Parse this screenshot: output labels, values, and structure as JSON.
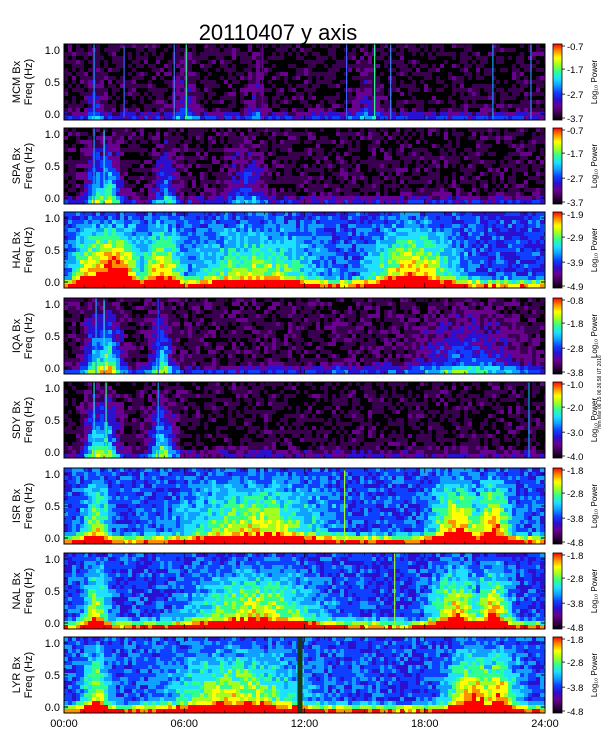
{
  "figure": {
    "title": "20110407 y axis",
    "side_note": "mm Mar 06 15 06:36:58 UT 2016"
  },
  "colors": {
    "background": "#ffffff",
    "plot_background": "#000000",
    "colormap": [
      "#000000",
      "#3a0050",
      "#6a0090",
      "#2a10d0",
      "#1040ff",
      "#10a0ff",
      "#20e0ff",
      "#30ff90",
      "#a0ff20",
      "#ffff00",
      "#ff9000",
      "#ff0000"
    ]
  },
  "chart_data": {
    "type": "heatmap",
    "x": {
      "label": "",
      "range": [
        0,
        24
      ],
      "unit": "UT hours",
      "tick_values": [
        0,
        6,
        12,
        18,
        24
      ],
      "tick_labels": [
        "00:00",
        "06:00",
        "12:00",
        "18:00",
        "24:00"
      ]
    },
    "panels": [
      {
        "ylabel": "MCM Bx",
        "ylabel2": "Freq (Hz)",
        "yticks": [
          "0.0",
          "0.5",
          "1.0"
        ],
        "ylim": [
          0,
          1.05
        ],
        "colorbar": {
          "label": "Log₁₀ Power",
          "ticks": [
            "-0.7",
            "-1.7",
            "-2.7",
            "-3.7"
          ],
          "range": [
            -3.7,
            -0.7
          ]
        },
        "base_level": 0.04,
        "low_freq_bands": [
          {
            "from": 0,
            "to": 24,
            "level": 0.18
          }
        ],
        "bursts": [
          {
            "t": 1.5,
            "level": 0.22,
            "width": 0.4
          },
          {
            "t": 6.0,
            "level": 0.2,
            "width": 0.5
          },
          {
            "t": 9.5,
            "level": 0.18,
            "width": 0.4
          },
          {
            "t": 15.0,
            "level": 0.2,
            "width": 0.5
          }
        ],
        "lines": [
          {
            "t": 1.5,
            "color": "#10a0ff"
          },
          {
            "t": 3.0,
            "color": "#3a60ff"
          },
          {
            "t": 5.5,
            "color": "#4080ff"
          },
          {
            "t": 6.1,
            "color": "#30ff90"
          },
          {
            "t": 9.9,
            "color": "#6a0090"
          },
          {
            "t": 14.1,
            "color": "#3a60ff"
          },
          {
            "t": 15.5,
            "color": "#30ff90"
          },
          {
            "t": 16.3,
            "color": "#4080ff"
          },
          {
            "t": 21.4,
            "color": "#10a0ff"
          },
          {
            "t": 23.3,
            "color": "#4080ff"
          }
        ]
      },
      {
        "ylabel": "SPA Bx",
        "ylabel2": "Freq (Hz)",
        "yticks": [
          "0.0",
          "0.5",
          "1.0"
        ],
        "ylim": [
          0,
          1.05
        ],
        "colorbar": {
          "label": "Log₁₀ Power",
          "ticks": [
            "-0.7",
            "-1.7",
            "-2.7",
            "-3.7"
          ],
          "range": [
            -3.7,
            -0.7
          ]
        },
        "base_level": 0.05,
        "low_freq_bands": [
          {
            "from": 0,
            "to": 24,
            "level": 0.14
          }
        ],
        "bursts": [
          {
            "t": 1.6,
            "level": 0.5,
            "width": 0.5
          },
          {
            "t": 2.1,
            "level": 0.55,
            "width": 0.6
          },
          {
            "t": 5.0,
            "level": 0.35,
            "width": 0.5
          },
          {
            "t": 9.0,
            "level": 0.25,
            "width": 1.0
          }
        ],
        "lines": [
          {
            "t": 1.5,
            "color": "#10a0ff"
          },
          {
            "t": 2.0,
            "color": "#20e0ff"
          }
        ]
      },
      {
        "ylabel": "HAL Bx",
        "ylabel2": "Freq (Hz)",
        "yticks": [
          "0.0",
          "0.5",
          "1.0"
        ],
        "ylim": [
          0,
          1.05
        ],
        "colorbar": {
          "label": "Log₁₀ Power",
          "ticks": [
            "-1.9",
            "-2.9",
            "-3.9",
            "-4.9"
          ],
          "range": [
            -4.9,
            -1.9
          ]
        },
        "base_level": 0.3,
        "low_freq_bands": [
          {
            "from": 0,
            "to": 24,
            "level": 0.38
          }
        ],
        "bursts": [
          {
            "t": 1.2,
            "level": 0.6,
            "width": 0.8
          },
          {
            "t": 2.3,
            "level": 0.82,
            "width": 1.4
          },
          {
            "t": 4.8,
            "level": 0.62,
            "width": 1.0
          },
          {
            "t": 9.5,
            "level": 0.45,
            "width": 3.0
          },
          {
            "t": 17.3,
            "level": 0.62,
            "width": 2.0
          }
        ],
        "lines": []
      },
      {
        "ylabel": "IQA Bx",
        "ylabel2": "Freq (Hz)",
        "yticks": [
          "0.0",
          "0.5",
          "1.0"
        ],
        "ylim": [
          0,
          1.05
        ],
        "colorbar": {
          "label": "Log₁₀ Power",
          "ticks": [
            "-0.8",
            "-1.8",
            "-2.8",
            "-3.8"
          ],
          "range": [
            -3.8,
            -0.8
          ]
        },
        "base_level": 0.06,
        "low_freq_bands": [
          {
            "from": 0,
            "to": 24,
            "level": 0.18
          }
        ],
        "bursts": [
          {
            "t": 1.5,
            "level": 0.5,
            "width": 0.5
          },
          {
            "t": 2.1,
            "level": 0.62,
            "width": 0.6
          },
          {
            "t": 4.8,
            "level": 0.42,
            "width": 0.5
          },
          {
            "t": 20.0,
            "level": 0.3,
            "width": 2.5
          }
        ],
        "lines": [
          {
            "t": 1.6,
            "color": "#10a0ff"
          },
          {
            "t": 2.0,
            "color": "#20e0ff"
          },
          {
            "t": 4.7,
            "color": "#1040ff"
          },
          {
            "t": 11.8,
            "color": "#3a0050"
          }
        ]
      },
      {
        "ylabel": "SDY Bx",
        "ylabel2": "Freq (Hz)",
        "yticks": [
          "0.0",
          "0.5",
          "1.0"
        ],
        "ylim": [
          0,
          1.05
        ],
        "colorbar": {
          "label": "Log₁₀ Power",
          "ticks": [
            "-1.0",
            "-2.0",
            "-3.0",
            "-4.0"
          ],
          "range": [
            -4.0,
            -1.0
          ]
        },
        "base_level": 0.04,
        "low_freq_bands": [
          {
            "from": 0,
            "to": 24,
            "level": 0.12
          }
        ],
        "bursts": [
          {
            "t": 1.5,
            "level": 0.55,
            "width": 0.5
          },
          {
            "t": 2.0,
            "level": 0.55,
            "width": 0.6
          },
          {
            "t": 4.8,
            "level": 0.52,
            "width": 0.6
          }
        ],
        "lines": [
          {
            "t": 1.5,
            "color": "#20e0ff"
          },
          {
            "t": 2.1,
            "color": "#30ff90"
          },
          {
            "t": 4.7,
            "color": "#10a0ff"
          },
          {
            "t": 23.2,
            "color": "#10a0ff"
          }
        ]
      },
      {
        "ylabel": "ISR Bx",
        "ylabel2": "Freq (Hz)",
        "yticks": [
          "0.0",
          "0.5",
          "1.0"
        ],
        "ylim": [
          0,
          1.05
        ],
        "colorbar": {
          "label": "Log₁₀ Power",
          "ticks": [
            "-1.8",
            "-2.8",
            "-3.8",
            "-4.8"
          ],
          "range": [
            -4.8,
            -1.8
          ]
        },
        "base_level": 0.32,
        "low_freq_bands": [
          {
            "from": 0,
            "to": 24,
            "level": 0.42
          }
        ],
        "bursts": [
          {
            "t": 1.5,
            "level": 0.5,
            "width": 0.6
          },
          {
            "t": 9.5,
            "level": 0.5,
            "width": 3.0
          },
          {
            "t": 19.5,
            "level": 0.62,
            "width": 1.2
          },
          {
            "t": 21.3,
            "level": 0.65,
            "width": 0.8
          }
        ],
        "lines": [
          {
            "t": 14.0,
            "color": "#a0ff20"
          }
        ]
      },
      {
        "ylabel": "NAL Bx",
        "ylabel2": "Freq (Hz)",
        "yticks": [
          "0.0",
          "0.5",
          "1.0"
        ],
        "ylim": [
          0,
          1.05
        ],
        "colorbar": {
          "label": "Log₁₀ Power",
          "ticks": [
            "-1.8",
            "-2.8",
            "-3.8",
            "-4.8"
          ],
          "range": [
            -4.8,
            -1.8
          ]
        },
        "base_level": 0.3,
        "low_freq_bands": [
          {
            "from": 0,
            "to": 24,
            "level": 0.42
          }
        ],
        "bursts": [
          {
            "t": 1.5,
            "level": 0.5,
            "width": 0.6
          },
          {
            "t": 9.5,
            "level": 0.52,
            "width": 3.0
          },
          {
            "t": 19.5,
            "level": 0.62,
            "width": 1.2
          },
          {
            "t": 21.3,
            "level": 0.65,
            "width": 0.8
          }
        ],
        "lines": [
          {
            "t": 16.5,
            "color": "#a0ff20"
          }
        ]
      },
      {
        "ylabel": "LYR Bx",
        "ylabel2": "Freq (Hz)",
        "yticks": [
          "0.0",
          "0.5",
          "1.0"
        ],
        "ylim": [
          0,
          1.05
        ],
        "colorbar": {
          "label": "Log₁₀ Power",
          "ticks": [
            "-1.8",
            "-2.8",
            "-3.8",
            "-4.8"
          ],
          "range": [
            -4.8,
            -1.8
          ]
        },
        "base_level": 0.32,
        "low_freq_bands": [
          {
            "from": 0,
            "to": 24,
            "level": 0.42
          }
        ],
        "bursts": [
          {
            "t": 1.5,
            "level": 0.5,
            "width": 0.6
          },
          {
            "t": 8.5,
            "level": 0.5,
            "width": 3.0
          },
          {
            "t": 20.3,
            "level": 0.65,
            "width": 1.2
          },
          {
            "t": 21.6,
            "level": 0.62,
            "width": 0.8
          }
        ],
        "lines": [],
        "gap": {
          "from": 11.65,
          "to": 11.9
        }
      }
    ]
  }
}
